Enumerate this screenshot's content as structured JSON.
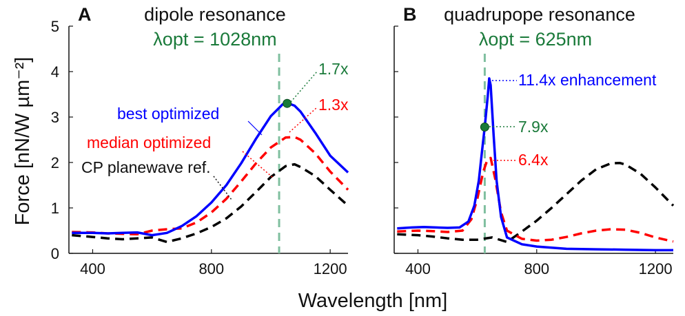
{
  "chart_data": [
    {
      "type": "line",
      "panel_letter": "A",
      "title": "dipole resonance",
      "lambda_opt_label": "λopt = 1028nm",
      "lambda_opt": 1028,
      "xlabel": "Wavelength [nm]",
      "ylabel": "Force [nN/W µm⁻²]",
      "xlim": [
        320,
        1260
      ],
      "ylim": [
        0,
        5
      ],
      "xticks": [
        "400",
        "800",
        "1200"
      ],
      "yticks": [
        "0",
        "1",
        "2",
        "3",
        "4",
        "5"
      ],
      "grid": false,
      "series": [
        {
          "name": "best optimized",
          "color": "#0000ff",
          "style": "solid",
          "x": [
            330,
            400,
            450,
            500,
            550,
            600,
            650,
            700,
            750,
            800,
            850,
            900,
            950,
            1000,
            1040,
            1060,
            1080,
            1100,
            1150,
            1200,
            1260
          ],
          "y": [
            0.45,
            0.45,
            0.44,
            0.45,
            0.46,
            0.4,
            0.45,
            0.6,
            0.82,
            1.12,
            1.5,
            1.98,
            2.52,
            3.02,
            3.28,
            3.3,
            3.25,
            3.12,
            2.65,
            2.15,
            1.78
          ]
        },
        {
          "name": "median optimized",
          "color": "#ff0000",
          "style": "dashed",
          "x": [
            330,
            400,
            450,
            500,
            550,
            600,
            650,
            700,
            750,
            800,
            850,
            900,
            950,
            1000,
            1050,
            1080,
            1100,
            1150,
            1200,
            1260
          ],
          "y": [
            0.47,
            0.46,
            0.44,
            0.43,
            0.42,
            0.5,
            0.53,
            0.55,
            0.68,
            0.9,
            1.2,
            1.58,
            1.98,
            2.33,
            2.55,
            2.56,
            2.5,
            2.2,
            1.8,
            1.4
          ]
        },
        {
          "name": "CP planewave ref.",
          "color": "#000000",
          "style": "dashed",
          "x": [
            330,
            400,
            450,
            500,
            550,
            600,
            650,
            700,
            750,
            800,
            850,
            900,
            950,
            1000,
            1050,
            1080,
            1100,
            1150,
            1200,
            1260
          ],
          "y": [
            0.4,
            0.36,
            0.33,
            0.31,
            0.33,
            0.35,
            0.25,
            0.33,
            0.44,
            0.58,
            0.77,
            1.03,
            1.35,
            1.68,
            1.92,
            1.96,
            1.9,
            1.7,
            1.4,
            1.05
          ]
        }
      ],
      "annotations": [
        {
          "text": "1.7x",
          "color": "#1a7a3a",
          "x": 1055,
          "y": 3.3
        },
        {
          "text": "1.3x",
          "color": "#ff0000",
          "x": 1055,
          "y": 2.55
        }
      ]
    },
    {
      "type": "line",
      "panel_letter": "B",
      "title": "quadrupope resonance",
      "lambda_opt_label": "λopt = 625nm",
      "lambda_opt": 625,
      "xlabel": "Wavelength [nm]",
      "xlim": [
        320,
        1260
      ],
      "ylim": [
        0,
        5
      ],
      "xticks": [
        "400",
        "800",
        "1200"
      ],
      "grid": false,
      "series": [
        {
          "name": "best optimized",
          "color": "#0000ff",
          "style": "solid",
          "x": [
            330,
            380,
            420,
            460,
            500,
            540,
            570,
            590,
            605,
            615,
            625,
            635,
            640,
            645,
            655,
            665,
            680,
            700,
            750,
            800,
            900,
            1000,
            1100,
            1200,
            1260
          ],
          "y": [
            0.55,
            0.57,
            0.58,
            0.57,
            0.56,
            0.57,
            0.7,
            1.05,
            1.6,
            2.2,
            2.78,
            3.45,
            3.85,
            3.7,
            2.6,
            1.6,
            0.8,
            0.35,
            0.2,
            0.15,
            0.1,
            0.09,
            0.08,
            0.07,
            0.07
          ]
        },
        {
          "name": "median optimized",
          "color": "#ff0000",
          "style": "dashed",
          "x": [
            330,
            400,
            450,
            500,
            550,
            580,
            600,
            620,
            635,
            645,
            660,
            680,
            700,
            750,
            800,
            850,
            900,
            950,
            1000,
            1050,
            1100,
            1150,
            1200,
            1260
          ],
          "y": [
            0.48,
            0.5,
            0.49,
            0.47,
            0.5,
            0.75,
            1.2,
            1.8,
            2.08,
            2.1,
            1.65,
            0.9,
            0.5,
            0.32,
            0.28,
            0.3,
            0.36,
            0.44,
            0.5,
            0.53,
            0.52,
            0.45,
            0.35,
            0.26
          ]
        },
        {
          "name": "CP planewave ref.",
          "color": "#000000",
          "style": "dashed",
          "x": [
            330,
            400,
            450,
            500,
            550,
            600,
            650,
            700,
            750,
            800,
            850,
            900,
            950,
            1000,
            1050,
            1080,
            1100,
            1150,
            1200,
            1260
          ],
          "y": [
            0.42,
            0.4,
            0.37,
            0.33,
            0.3,
            0.3,
            0.35,
            0.25,
            0.48,
            0.72,
            1.0,
            1.3,
            1.6,
            1.85,
            1.98,
            1.99,
            1.95,
            1.75,
            1.45,
            1.05
          ]
        }
      ],
      "annotations": [
        {
          "text": "11.4x enhancement",
          "color": "#0000ff",
          "x": 640,
          "y": 3.85
        },
        {
          "text": "7.9x",
          "color": "#1a7a3a",
          "x": 625,
          "y": 2.78
        },
        {
          "text": "6.4x",
          "color": "#ff0000",
          "x": 640,
          "y": 2.1
        }
      ]
    }
  ]
}
